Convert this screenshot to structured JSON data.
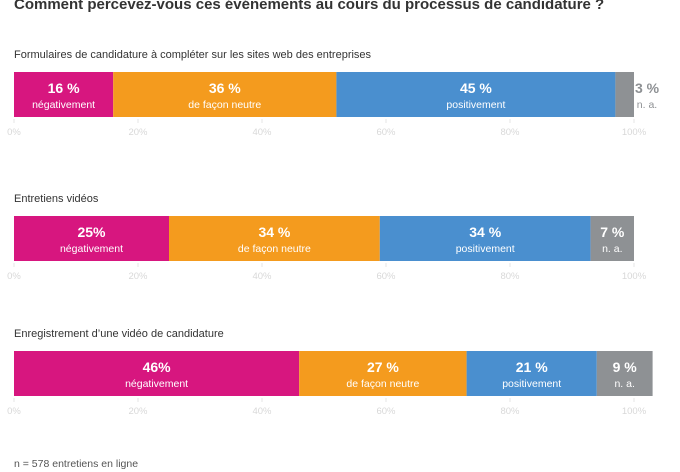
{
  "title": "Comment percevez-vous ces événements au cours du processus de candidature ?",
  "footnote": "n = 578 entretiens en ligne",
  "chart_data": {
    "type": "bar",
    "orientation": "horizontal",
    "stacked": true,
    "xlim": [
      0,
      100
    ],
    "tick_labels": [
      "0%",
      "20%",
      "40%",
      "60%",
      "80%",
      "100%"
    ],
    "grid": true,
    "categories": [
      "Formulaires de candidature à compléter sur les sites web des entreprises",
      "Entretiens vidéos",
      "Enregistrement d’une vidéo de candidature"
    ],
    "series": [
      {
        "name": "négativement",
        "color": "#d7167f",
        "values": [
          16,
          25,
          46
        ],
        "value_labels": [
          "16 %",
          "25%",
          "46%"
        ]
      },
      {
        "name": "de façon neutre",
        "color": "#f49b1e",
        "values": [
          36,
          34,
          27
        ],
        "value_labels": [
          "36 %",
          "34 %",
          "27 %"
        ]
      },
      {
        "name": "positivement",
        "color": "#4a8fcf",
        "values": [
          45,
          34,
          21
        ],
        "value_labels": [
          "45 %",
          "34 %",
          "21 %"
        ]
      },
      {
        "name": "n. a.",
        "color": "#8e9194",
        "values": [
          3,
          7,
          9
        ],
        "value_labels": [
          "3 %",
          "7 %",
          "9 %"
        ]
      }
    ]
  }
}
